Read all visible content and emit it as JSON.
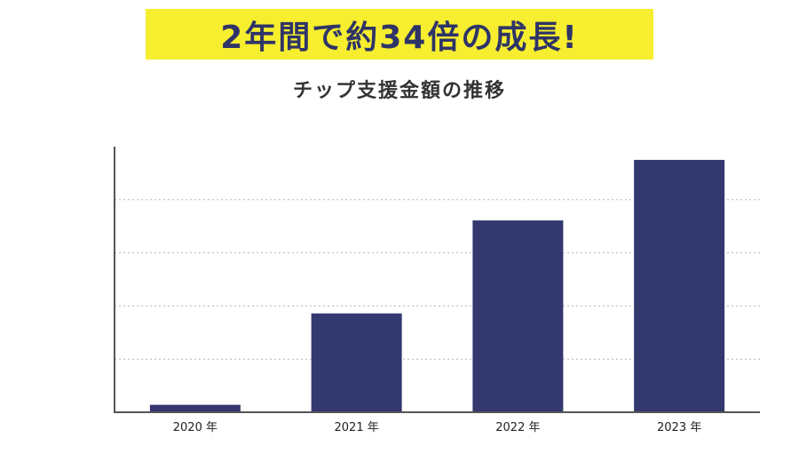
{
  "headline": "2年間で約34倍の成長!",
  "chart_data": {
    "type": "bar",
    "title": "チップ支援金額の推移",
    "categories": [
      "2020 年",
      "2021 年",
      "2022 年",
      "2023 年"
    ],
    "values": [
      1.4,
      18.6,
      36.1,
      47.5
    ],
    "ylim": [
      0,
      50
    ],
    "grid": true,
    "bar_color": "#33386e",
    "axis_color": "#555555",
    "grid_color": "#b5b5b5"
  }
}
